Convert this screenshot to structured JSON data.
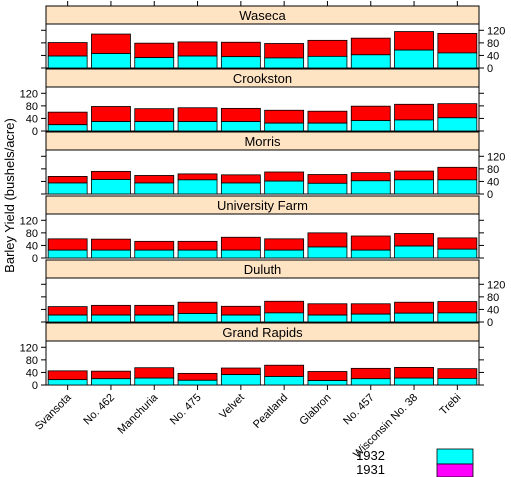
{
  "chart_data": {
    "type": "bar",
    "layout": "stacked-panels",
    "ylabel": "Barley Yield (bushels/acre)",
    "ylim": [
      0,
      140
    ],
    "yticks": [
      0,
      40,
      80,
      120
    ],
    "categories": [
      "Svansota",
      "No. 462",
      "Manchuria",
      "No. 475",
      "Velvet",
      "Peatland",
      "Glabron",
      "No. 457",
      "Wisconsin No. 38",
      "Trebi"
    ],
    "legend": [
      {
        "name": "1932",
        "color": "#00ffff"
      },
      {
        "name": "1931",
        "color": "#ff00ff"
      }
    ],
    "panels": [
      {
        "site": "Waseca",
        "y1932": [
          38,
          46,
          33,
          38,
          36,
          32,
          37,
          42,
          57,
          48
        ],
        "total": [
          81,
          108,
          79,
          83,
          82,
          78,
          88,
          95,
          116,
          110
        ]
      },
      {
        "site": "Crookston",
        "y1932": [
          20,
          30,
          30,
          30,
          30,
          25,
          25,
          33,
          35,
          42
        ],
        "total": [
          60,
          78,
          71,
          74,
          72,
          66,
          63,
          79,
          85,
          87
        ]
      },
      {
        "site": "Morris",
        "y1932": [
          35,
          46,
          35,
          45,
          35,
          41,
          34,
          42,
          45,
          45
        ],
        "total": [
          56,
          72,
          59,
          64,
          61,
          70,
          62,
          68,
          73,
          85
        ]
      },
      {
        "site": "University Farm",
        "y1932": [
          25,
          25,
          25,
          25,
          25,
          25,
          35,
          25,
          38,
          28
        ],
        "total": [
          61,
          60,
          53,
          53,
          66,
          61,
          80,
          70,
          78,
          64
        ]
      },
      {
        "site": "Duluth",
        "y1932": [
          22,
          22,
          22,
          27,
          22,
          29,
          22,
          25,
          28,
          29
        ],
        "total": [
          49,
          53,
          53,
          63,
          50,
          66,
          58,
          58,
          63,
          65
        ]
      },
      {
        "site": "Grand Rapids",
        "y1932": [
          17,
          20,
          22,
          15,
          33,
          27,
          14,
          20,
          22,
          21
        ],
        "total": [
          45,
          44,
          55,
          37,
          54,
          63,
          43,
          53,
          56,
          52
        ]
      }
    ],
    "colors": {
      "y1932": "#00ffff",
      "y1931": "#ff0000",
      "strip": "#ffe4c4",
      "legend1931": "#ff00ff"
    }
  }
}
